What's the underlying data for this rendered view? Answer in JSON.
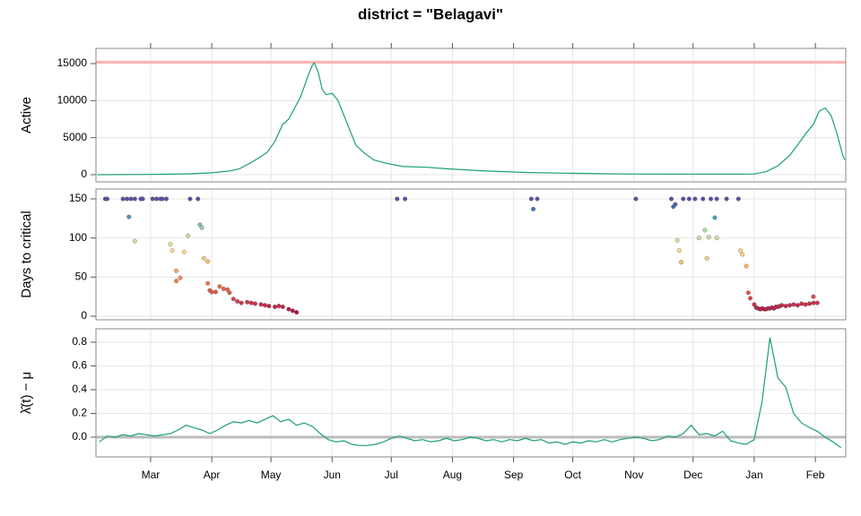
{
  "title": "district = \"Belagavi\"",
  "chart_data": [
    {
      "type": "line",
      "ylabel": "Active",
      "color": "#1b9e77",
      "grid": true,
      "x": [
        -27,
        0,
        20,
        31,
        40,
        45,
        50,
        55,
        59,
        63,
        67,
        70,
        73,
        76,
        78,
        80,
        82,
        83,
        85,
        87,
        89,
        92,
        95,
        98,
        101,
        104,
        108,
        113,
        120,
        128,
        140,
        150,
        170,
        190,
        210,
        240,
        270,
        300,
        306,
        312,
        318,
        324,
        328,
        332,
        336,
        339,
        342,
        345,
        348,
        351,
        352
      ],
      "values": [
        0,
        30,
        120,
        250,
        500,
        800,
        1500,
        2300,
        3000,
        4500,
        6800,
        7500,
        9000,
        10500,
        12000,
        13500,
        14800,
        15100,
        13800,
        11500,
        10800,
        11000,
        10000,
        8000,
        6000,
        4000,
        3000,
        2000,
        1500,
        1100,
        1000,
        800,
        500,
        300,
        200,
        100,
        80,
        80,
        100,
        400,
        1200,
        2600,
        4000,
        5500,
        6800,
        8600,
        9000,
        8000,
        5500,
        2500,
        2000
      ],
      "ylim": [
        -970,
        17060
      ],
      "yticks": [
        0,
        5000,
        10000,
        15000
      ],
      "hline": 15200,
      "hline_color": "#ffb3b3"
    },
    {
      "type": "scatter",
      "ylabel": "Days to critical",
      "grid": true,
      "x": [
        -23,
        -22,
        -14,
        -12,
        -10,
        -8,
        -5,
        -4,
        1,
        3,
        5,
        6,
        8,
        20,
        24,
        -11,
        -8,
        10,
        11,
        13,
        13,
        15,
        17,
        19,
        25,
        26,
        27,
        29,
        29,
        30,
        31,
        33,
        35,
        37,
        39,
        40,
        42,
        44,
        46,
        49,
        51,
        53,
        56,
        58,
        60,
        63,
        65,
        67,
        70,
        72,
        74,
        125,
        129,
        193,
        194,
        196,
        246,
        264,
        265,
        266,
        270,
        273,
        276,
        280,
        284,
        287,
        292,
        298,
        267,
        268,
        269,
        278,
        281,
        283,
        286,
        287,
        282,
        299,
        300,
        302,
        303,
        304,
        306,
        307,
        308,
        309,
        310,
        311,
        312,
        313,
        314,
        315,
        316,
        317,
        318,
        319,
        320,
        322,
        324,
        326,
        328,
        330,
        332,
        334,
        336,
        338,
        336
      ],
      "values": [
        150,
        150,
        150,
        150,
        150,
        150,
        150,
        150,
        150,
        150,
        150,
        150,
        150,
        150,
        150,
        127,
        96,
        92,
        84,
        58,
        45,
        49,
        82,
        103,
        117,
        113,
        74,
        70,
        42,
        33,
        31,
        31,
        38,
        35,
        34,
        30,
        22,
        19,
        17,
        18,
        17,
        16,
        15,
        14,
        13,
        12,
        13,
        12,
        9,
        7,
        5,
        150,
        150,
        150,
        137,
        150,
        150,
        150,
        140,
        143,
        150,
        150,
        150,
        150,
        150,
        150,
        150,
        150,
        97,
        84,
        69,
        100,
        110,
        101,
        126,
        100,
        74,
        84,
        79,
        64,
        30,
        23,
        15,
        11,
        10,
        9,
        10,
        9,
        9,
        10,
        10,
        11,
        10,
        12,
        12,
        13,
        14,
        13,
        14,
        15,
        14,
        16,
        15,
        16,
        17,
        17,
        25
      ],
      "colormap": {
        "values": [
          0,
          20,
          40,
          60,
          85,
          110,
          130,
          150
        ],
        "colors": [
          "#9e0142",
          "#d53e4f",
          "#f46d43",
          "#fdae61",
          "#fee08b",
          "#abdda4",
          "#3288bd",
          "#5e4fa2"
        ]
      },
      "ylim": [
        -4.6,
        162.6
      ],
      "yticks": [
        0,
        50,
        100,
        150
      ]
    },
    {
      "type": "line",
      "ylabel": "λ̂(t) − μ",
      "color": "#1b9e77",
      "grid": true,
      "x": [
        -26,
        -22,
        -18,
        -14,
        -10,
        -6,
        -2,
        2,
        6,
        10,
        14,
        18,
        22,
        26,
        30,
        34,
        38,
        42,
        46,
        50,
        54,
        58,
        62,
        66,
        70,
        74,
        78,
        82,
        86,
        90,
        94,
        98,
        102,
        106,
        110,
        114,
        118,
        122,
        126,
        130,
        134,
        138,
        142,
        146,
        150,
        154,
        158,
        162,
        166,
        170,
        174,
        178,
        182,
        186,
        190,
        194,
        198,
        202,
        206,
        210,
        214,
        218,
        222,
        226,
        230,
        234,
        238,
        242,
        246,
        250,
        254,
        258,
        262,
        266,
        270,
        274,
        278,
        282,
        286,
        290,
        294,
        298,
        302,
        306,
        310,
        314,
        318,
        322,
        326,
        330,
        334,
        338,
        342,
        346,
        350
      ],
      "values": [
        -0.04,
        0.01,
        0.0,
        0.02,
        0.01,
        0.03,
        0.02,
        0.01,
        0.02,
        0.03,
        0.06,
        0.1,
        0.08,
        0.06,
        0.03,
        0.06,
        0.1,
        0.13,
        0.12,
        0.14,
        0.12,
        0.15,
        0.18,
        0.13,
        0.15,
        0.1,
        0.12,
        0.09,
        0.03,
        -0.02,
        -0.04,
        -0.03,
        -0.06,
        -0.07,
        -0.07,
        -0.06,
        -0.04,
        -0.01,
        0.01,
        -0.01,
        -0.03,
        -0.02,
        -0.04,
        -0.03,
        -0.01,
        -0.03,
        -0.02,
        0.0,
        -0.01,
        -0.03,
        -0.02,
        -0.04,
        -0.02,
        -0.03,
        -0.01,
        -0.03,
        -0.02,
        -0.05,
        -0.04,
        -0.06,
        -0.04,
        -0.05,
        -0.03,
        -0.04,
        -0.02,
        -0.04,
        -0.02,
        -0.01,
        0.0,
        -0.01,
        -0.03,
        -0.02,
        0.01,
        0.0,
        0.03,
        0.1,
        0.02,
        0.03,
        0.01,
        0.05,
        -0.03,
        -0.05,
        -0.06,
        -0.02,
        0.3,
        0.84,
        0.5,
        0.42,
        0.2,
        0.12,
        0.08,
        0.05,
        0.0,
        -0.04,
        -0.09
      ],
      "ylim": [
        -0.166,
        0.913
      ],
      "yticks": [
        {
          "value": 0,
          "label": "0.0"
        },
        0.2,
        0.4,
        0.6,
        0.8
      ],
      "hline": 0,
      "hline_color": "#bbbbbb",
      "xlim": [
        -27.7,
        352.4
      ],
      "xticks": [
        {
          "value": 0,
          "label": "Mar"
        },
        {
          "value": 31,
          "label": "Apr"
        },
        {
          "value": 61,
          "label": "May"
        },
        {
          "value": 92,
          "label": "Jun"
        },
        {
          "value": 122,
          "label": "Jul"
        },
        {
          "value": 153,
          "label": "Aug"
        },
        {
          "value": 184,
          "label": "Sep"
        },
        {
          "value": 214,
          "label": "Oct"
        },
        {
          "value": 245,
          "label": "Nov"
        },
        {
          "value": 275,
          "label": "Dec"
        },
        {
          "value": 306,
          "label": "Jan"
        },
        {
          "value": 337,
          "label": "Feb"
        }
      ]
    }
  ]
}
